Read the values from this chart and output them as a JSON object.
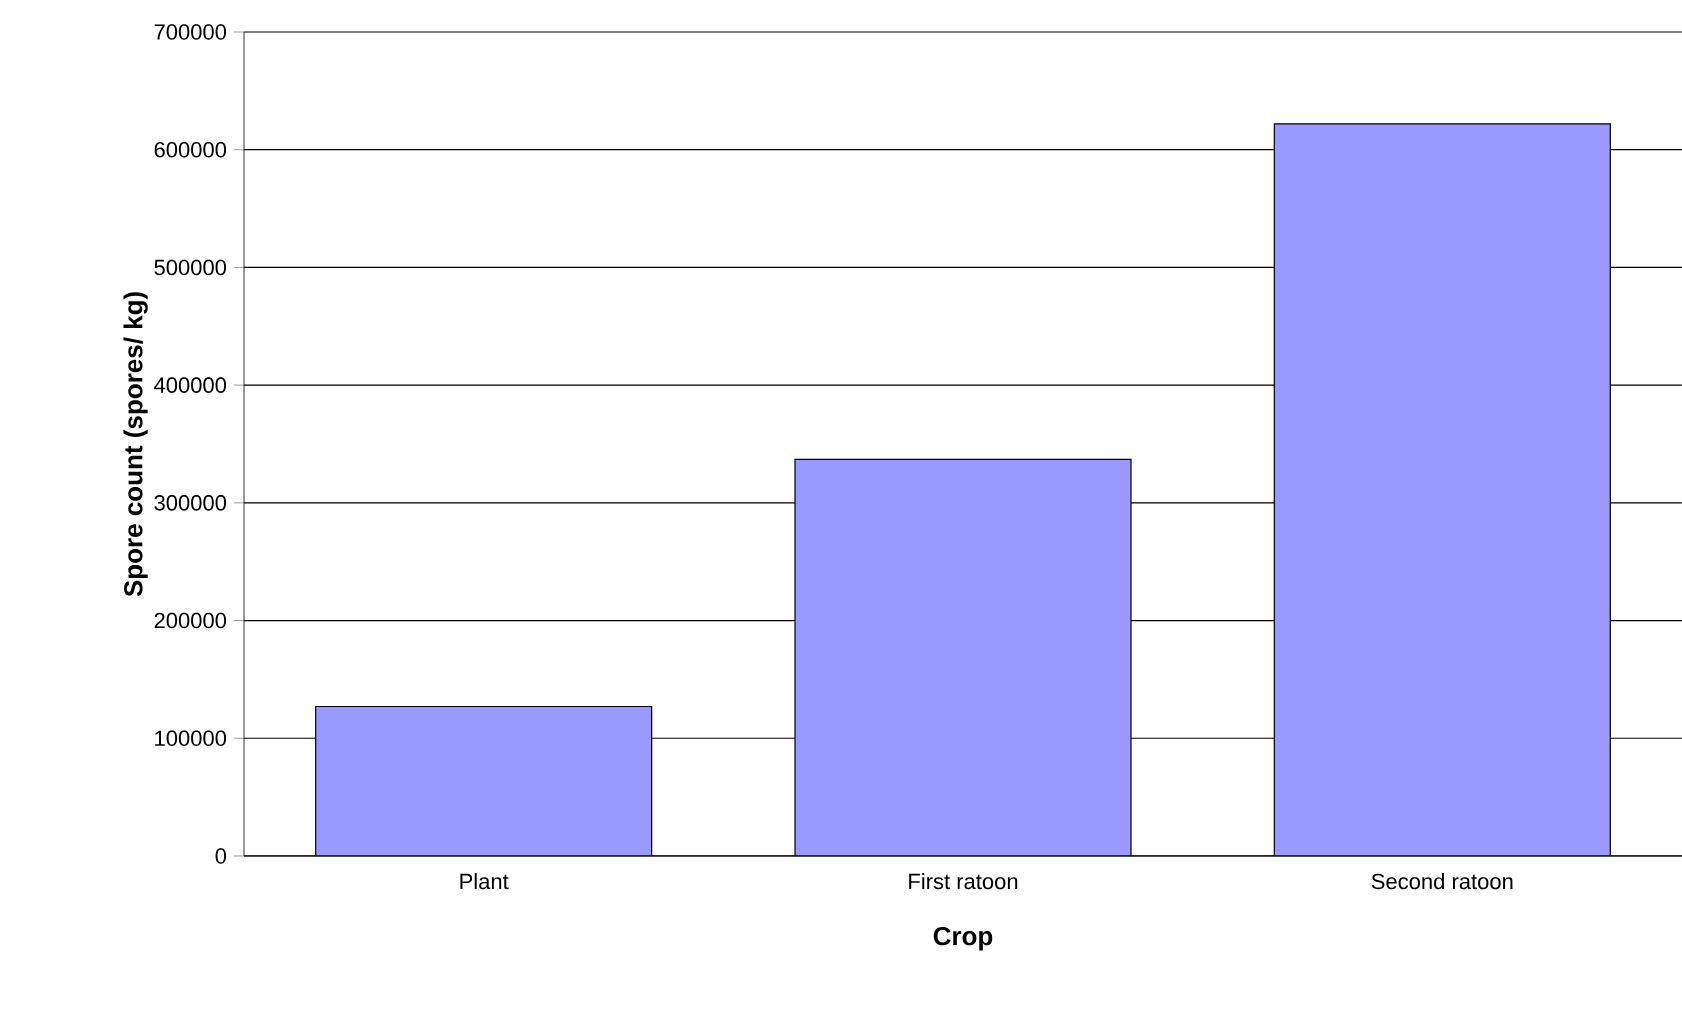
{
  "chart_data": {
    "type": "bar",
    "xlabel": "Crop",
    "ylabel": "Spore count (spores/ kg)",
    "categories": [
      "Plant",
      "First ratoon",
      "Second ratoon"
    ],
    "values": [
      127000,
      337000,
      622000
    ],
    "color": "#9999ff",
    "ylim": [
      0,
      700000
    ],
    "yticks": [
      0,
      100000,
      200000,
      300000,
      400000,
      500000,
      600000,
      700000
    ],
    "grid": "y"
  }
}
